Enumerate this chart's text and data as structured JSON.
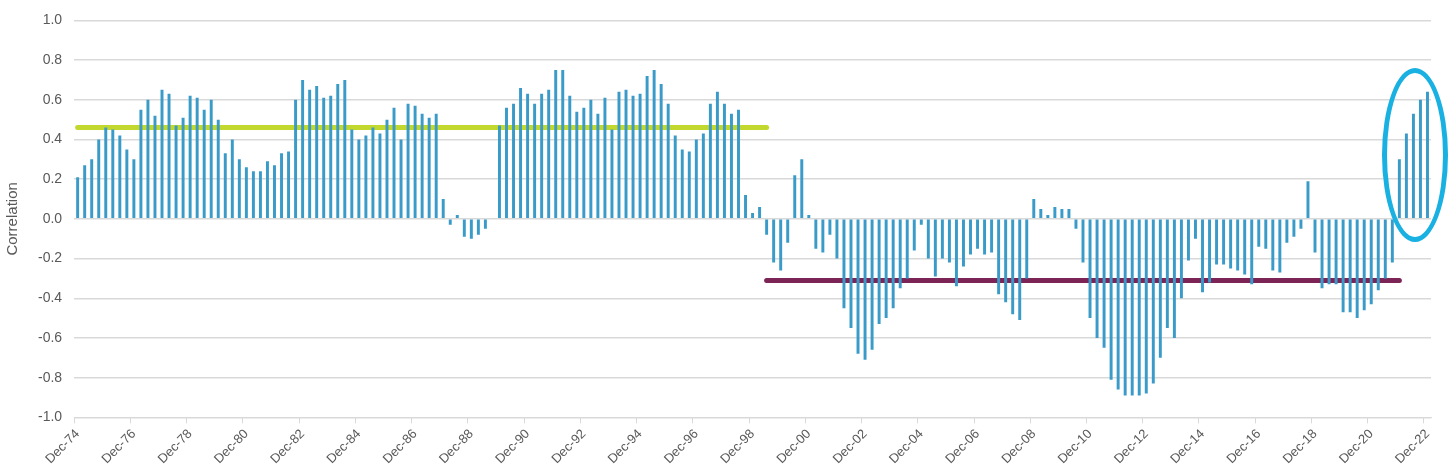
{
  "chart_data": {
    "type": "bar",
    "ylabel": "Correlation",
    "legend": false,
    "grid": "y",
    "categories": [
      "Dec-74",
      null,
      null,
      null,
      null,
      null,
      null,
      null,
      "Dec-76",
      null,
      null,
      null,
      null,
      null,
      null,
      null,
      "Dec-78",
      null,
      null,
      null,
      null,
      null,
      null,
      null,
      "Dec-80",
      null,
      null,
      null,
      null,
      null,
      null,
      null,
      "Dec-82",
      null,
      null,
      null,
      null,
      null,
      null,
      null,
      "Dec-84",
      null,
      null,
      null,
      null,
      null,
      null,
      null,
      "Dec-86",
      null,
      null,
      null,
      null,
      null,
      null,
      null,
      "Dec-88",
      null,
      null,
      null,
      null,
      null,
      null,
      null,
      "Dec-90",
      null,
      null,
      null,
      null,
      null,
      null,
      null,
      "Dec-92",
      null,
      null,
      null,
      null,
      null,
      null,
      null,
      "Dec-94",
      null,
      null,
      null,
      null,
      null,
      null,
      null,
      "Dec-96",
      null,
      null,
      null,
      null,
      null,
      null,
      null,
      "Dec-98",
      null,
      null,
      null,
      null,
      null,
      null,
      null,
      "Dec-00",
      null,
      null,
      null,
      null,
      null,
      null,
      null,
      "Dec-02",
      null,
      null,
      null,
      null,
      null,
      null,
      null,
      "Dec-04",
      null,
      null,
      null,
      null,
      null,
      null,
      null,
      "Dec-06",
      null,
      null,
      null,
      null,
      null,
      null,
      null,
      "Dec-08",
      null,
      null,
      null,
      null,
      null,
      null,
      null,
      "Dec-10",
      null,
      null,
      null,
      null,
      null,
      null,
      null,
      "Dec-12",
      null,
      null,
      null,
      null,
      null,
      null,
      null,
      "Dec-14",
      null,
      null,
      null,
      null,
      null,
      null,
      null,
      "Dec-16",
      null,
      null,
      null,
      null,
      null,
      null,
      null,
      "Dec-18",
      null,
      null,
      null,
      null,
      null,
      null,
      null,
      "Dec-20",
      null,
      null,
      null,
      null,
      null,
      null,
      null,
      "Dec-22"
    ],
    "ylim": [
      -1,
      1
    ],
    "yticks": [
      {
        "value": -1,
        "label": "-1.0"
      },
      -0.8,
      -0.6,
      -0.4,
      -0.2,
      {
        "value": 0,
        "label": "0.0"
      },
      0.2,
      0.4,
      0.6,
      0.8,
      {
        "value": 1,
        "label": "1.0"
      }
    ],
    "series": [
      {
        "color": "#3a9bc9",
        "values": [
          0.21,
          0.27,
          0.3,
          0.4,
          0.46,
          0.45,
          0.42,
          0.35,
          0.3,
          0.55,
          0.6,
          0.52,
          0.65,
          0.63,
          0.47,
          0.51,
          0.62,
          0.61,
          0.55,
          0.6,
          0.5,
          0.33,
          0.4,
          0.3,
          0.26,
          0.24,
          0.24,
          0.29,
          0.27,
          0.33,
          0.34,
          0.6,
          0.7,
          0.65,
          0.67,
          0.61,
          0.62,
          0.68,
          0.7,
          0.45,
          0.4,
          0.42,
          0.46,
          0.43,
          0.5,
          0.56,
          0.4,
          0.58,
          0.57,
          0.53,
          0.51,
          0.53,
          0.1,
          -0.03,
          0.02,
          -0.09,
          -0.1,
          -0.08,
          -0.05,
          null,
          0.47,
          0.56,
          0.58,
          0.66,
          0.63,
          0.58,
          0.63,
          0.65,
          0.75,
          0.75,
          0.62,
          0.54,
          0.56,
          0.6,
          0.53,
          0.61,
          0.45,
          0.64,
          0.65,
          0.62,
          0.63,
          0.72,
          0.75,
          0.68,
          0.58,
          0.42,
          0.35,
          0.34,
          0.4,
          0.43,
          0.58,
          0.64,
          0.58,
          0.53,
          0.55,
          0.12,
          0.03,
          0.06,
          -0.08,
          -0.22,
          -0.26,
          -0.12,
          0.22,
          0.3,
          0.02,
          -0.15,
          -0.17,
          -0.08,
          -0.2,
          -0.45,
          -0.55,
          -0.68,
          -0.71,
          -0.66,
          -0.53,
          -0.5,
          -0.45,
          -0.35,
          -0.3,
          -0.16,
          -0.03,
          -0.2,
          -0.29,
          -0.2,
          -0.22,
          -0.34,
          -0.24,
          -0.18,
          -0.15,
          -0.18,
          -0.17,
          -0.38,
          -0.42,
          -0.48,
          -0.51,
          -0.3,
          0.1,
          0.05,
          0.02,
          0.06,
          0.05,
          0.05,
          -0.05,
          -0.22,
          -0.5,
          -0.6,
          -0.65,
          -0.81,
          -0.86,
          -0.89,
          -0.89,
          -0.89,
          -0.88,
          -0.83,
          -0.7,
          -0.55,
          -0.6,
          -0.4,
          -0.21,
          -0.1,
          -0.37,
          -0.32,
          -0.23,
          -0.23,
          -0.25,
          -0.26,
          -0.28,
          -0.33,
          -0.14,
          -0.15,
          -0.26,
          -0.27,
          -0.12,
          -0.09,
          -0.05,
          0.19,
          -0.17,
          -0.35,
          -0.33,
          -0.33,
          -0.47,
          -0.47,
          -0.5,
          -0.46,
          -0.43,
          -0.36,
          -0.3,
          -0.22,
          0.3,
          0.43,
          0.53,
          0.6,
          0.64
        ]
      },
      {
        "type": "line",
        "color": "#c3d82e",
        "values": [
          0.46,
          0.46,
          0.46,
          0.46,
          0.46,
          0.46,
          0.46,
          0.46,
          0.46,
          0.46,
          0.46,
          0.46,
          0.46,
          0.46,
          0.46,
          0.46,
          0.46,
          0.46,
          0.46,
          0.46,
          0.46,
          0.46,
          0.46,
          0.46,
          0.46,
          0.46,
          0.46,
          0.46,
          0.46,
          0.46,
          0.46,
          0.46,
          0.46,
          0.46,
          0.46,
          0.46,
          0.46,
          0.46,
          0.46,
          0.46,
          0.46,
          0.46,
          0.46,
          0.46,
          0.46,
          0.46,
          0.46,
          0.46,
          0.46,
          0.46,
          0.46,
          0.46,
          0.46,
          0.46,
          0.46,
          0.46,
          0.46,
          0.46,
          0.46,
          0.46,
          0.46,
          0.46,
          0.46,
          0.46,
          0.46,
          0.46,
          0.46,
          0.46,
          0.46,
          0.46,
          0.46,
          0.46,
          0.46,
          0.46,
          0.46,
          0.46,
          0.46,
          0.46,
          0.46,
          0.46,
          0.46,
          0.46,
          0.46,
          0.46,
          0.46,
          0.46,
          0.46,
          0.46,
          0.46,
          0.46,
          0.46,
          0.46,
          0.46,
          0.46,
          0.46,
          0.46,
          0.46,
          0.46,
          0.46,
          null,
          null,
          null,
          null,
          null,
          null,
          null,
          null,
          null,
          null,
          null,
          null,
          null,
          null,
          null,
          null,
          null,
          null,
          null,
          null,
          null,
          null,
          null,
          null,
          null,
          null,
          null,
          null,
          null,
          null,
          null,
          null,
          null,
          null,
          null,
          null,
          null,
          null,
          null,
          null,
          null,
          null,
          null,
          null,
          null,
          null,
          null,
          null,
          null,
          null,
          null,
          null,
          null,
          null,
          null,
          null,
          null,
          null,
          null,
          null,
          null,
          null,
          null,
          null,
          null,
          null,
          null,
          null,
          null,
          null,
          null,
          null,
          null,
          null,
          null,
          null,
          null,
          null,
          null,
          null,
          null,
          null,
          null,
          null,
          null,
          null,
          null,
          null,
          null,
          null,
          null,
          null,
          null,
          null
        ]
      },
      {
        "type": "line",
        "color": "#7b2455",
        "values": [
          null,
          null,
          null,
          null,
          null,
          null,
          null,
          null,
          null,
          null,
          null,
          null,
          null,
          null,
          null,
          null,
          null,
          null,
          null,
          null,
          null,
          null,
          null,
          null,
          null,
          null,
          null,
          null,
          null,
          null,
          null,
          null,
          null,
          null,
          null,
          null,
          null,
          null,
          null,
          null,
          null,
          null,
          null,
          null,
          null,
          null,
          null,
          null,
          null,
          null,
          null,
          null,
          null,
          null,
          null,
          null,
          null,
          null,
          null,
          null,
          null,
          null,
          null,
          null,
          null,
          null,
          null,
          null,
          null,
          null,
          null,
          null,
          null,
          null,
          null,
          null,
          null,
          null,
          null,
          null,
          null,
          null,
          null,
          null,
          null,
          null,
          null,
          null,
          null,
          null,
          null,
          null,
          null,
          null,
          null,
          null,
          null,
          null,
          -0.31,
          -0.31,
          -0.31,
          -0.31,
          -0.31,
          -0.31,
          -0.31,
          -0.31,
          -0.31,
          -0.31,
          -0.31,
          -0.31,
          -0.31,
          -0.31,
          -0.31,
          -0.31,
          -0.31,
          -0.31,
          -0.31,
          -0.31,
          -0.31,
          -0.31,
          -0.31,
          -0.31,
          -0.31,
          -0.31,
          -0.31,
          -0.31,
          -0.31,
          -0.31,
          -0.31,
          -0.31,
          -0.31,
          -0.31,
          -0.31,
          -0.31,
          -0.31,
          -0.31,
          -0.31,
          -0.31,
          -0.31,
          -0.31,
          -0.31,
          -0.31,
          -0.31,
          -0.31,
          -0.31,
          -0.31,
          -0.31,
          -0.31,
          -0.31,
          -0.31,
          -0.31,
          -0.31,
          -0.31,
          -0.31,
          -0.31,
          -0.31,
          -0.31,
          -0.31,
          -0.31,
          -0.31,
          -0.31,
          -0.31,
          -0.31,
          -0.31,
          -0.31,
          -0.31,
          -0.31,
          -0.31,
          -0.31,
          -0.31,
          -0.31,
          -0.31,
          -0.31,
          -0.31,
          -0.31,
          -0.31,
          -0.31,
          -0.31,
          -0.31,
          -0.31,
          -0.31,
          -0.31,
          -0.31,
          -0.31,
          -0.31,
          -0.31,
          -0.31,
          -0.31,
          -0.31,
          null,
          null,
          null,
          null
        ]
      }
    ]
  }
}
